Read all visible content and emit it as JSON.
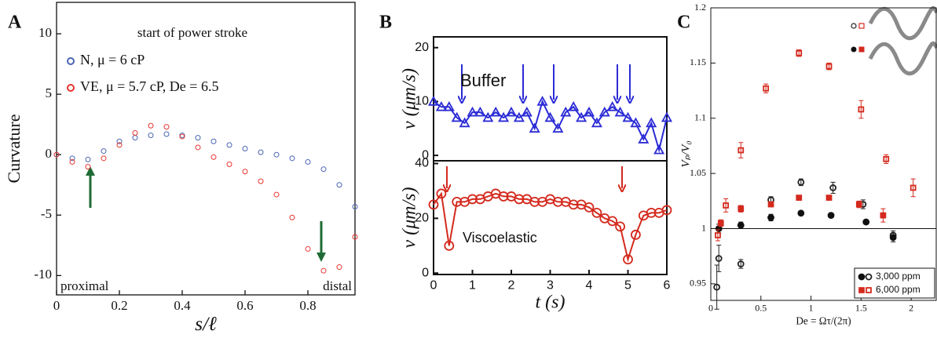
{
  "chart_data": [
    {
      "type": "scatter",
      "panel": "A",
      "x": [
        0,
        0.05,
        0.1,
        0.15,
        0.2,
        0.25,
        0.3,
        0.35,
        0.4,
        0.45,
        0.5,
        0.55,
        0.6,
        0.65,
        0.7,
        0.75,
        0.8,
        0.85,
        0.9,
        0.95
      ],
      "series": [
        {
          "name": "N, μ = 6 cP",
          "color": "#4a64b4",
          "marker": "circle",
          "filled": false,
          "values": [
            0,
            -0.3,
            -0.4,
            0.3,
            1.1,
            1.4,
            1.6,
            1.7,
            1.6,
            1.4,
            1.1,
            0.8,
            0.5,
            0.2,
            0,
            -0.3,
            -0.6,
            -1.2,
            -2.5,
            -4.3
          ]
        },
        {
          "name": "VE, μ = 5.7 cP, De = 6.5",
          "color": "#e8352f",
          "marker": "circle",
          "filled": false,
          "values": [
            0,
            -0.6,
            -1,
            -0.3,
            0.8,
            1.8,
            2.4,
            2.3,
            1.5,
            0.6,
            -0.2,
            -0.8,
            -1.4,
            -2.2,
            -3.3,
            -5.2,
            -7.8,
            -9.6,
            -9.3,
            -6.8
          ]
        }
      ],
      "xlim": [
        0,
        0.95
      ],
      "ylim": [
        -11.6,
        12.6
      ],
      "xticks": [
        0,
        0.2,
        0.4,
        0.6,
        0.8
      ],
      "yticks": [
        -10,
        -5,
        0,
        5,
        10
      ],
      "xlabel": "s/ℓ",
      "ylabel": "Curvature",
      "annotations": [
        "start of power stroke",
        "proximal",
        "distal"
      ]
    },
    {
      "type": "line",
      "panel": "B",
      "x": [
        0,
        0.2,
        0.4,
        0.6,
        0.8,
        1,
        1.2,
        1.4,
        1.6,
        1.8,
        2,
        2.2,
        2.4,
        2.6,
        2.8,
        3,
        3.2,
        3.4,
        3.6,
        3.8,
        4,
        4.2,
        4.4,
        4.6,
        4.8,
        5,
        5.2,
        5.4,
        5.6,
        5.8,
        6
      ],
      "series": [
        {
          "name": "Buffer",
          "color": "#2b2bd6",
          "marker": "triangle",
          "filled": false,
          "values": [
            10,
            9,
            9,
            7,
            6,
            8,
            8,
            7,
            8,
            7,
            8,
            7,
            8,
            5,
            10,
            7,
            5,
            8,
            9,
            7,
            8,
            6,
            8,
            9,
            8,
            7,
            6,
            3,
            6,
            1,
            7
          ]
        }
      ],
      "xlim": [
        0,
        6
      ],
      "ylim": [
        -1,
        22
      ],
      "yticks": [
        0,
        10,
        20
      ],
      "ylabel": "v (μm/s)"
    },
    {
      "type": "line",
      "x": [
        0,
        0.2,
        0.4,
        0.6,
        0.8,
        1,
        1.2,
        1.4,
        1.6,
        1.8,
        2,
        2.2,
        2.4,
        2.6,
        2.8,
        3,
        3.2,
        3.4,
        3.6,
        3.8,
        4,
        4.2,
        4.4,
        4.6,
        4.8,
        5,
        5.2,
        5.4,
        5.6,
        5.8,
        6
      ],
      "series": [
        {
          "name": "Viscoelastic",
          "color": "#d42a1e",
          "marker": "circle",
          "filled": false,
          "values": [
            25,
            29,
            10,
            26,
            26,
            27,
            27,
            28,
            29,
            28,
            28,
            27,
            27,
            26,
            26,
            27,
            26,
            26,
            25,
            25,
            24,
            22,
            20,
            19,
            17,
            5,
            14,
            21,
            22,
            22,
            23
          ]
        }
      ],
      "xlim": [
        0,
        6
      ],
      "ylim": [
        -0.5,
        41
      ],
      "xticks": [
        0,
        1,
        2,
        3,
        4,
        5,
        6
      ],
      "yticks": [
        0,
        20,
        40
      ],
      "xlabel": "t (s)",
      "ylabel": "v (μm/s)"
    },
    {
      "type": "scatter",
      "panel": "C",
      "series": [
        {
          "color": "#222222",
          "marker": "circle",
          "filled": false,
          "x": [
            0.06,
            0.08,
            0.3,
            0.6,
            0.9,
            1.22,
            1.52,
            1.82
          ],
          "values": [
            0.947,
            0.973,
            0.968,
            1.026,
            1.042,
            1.037,
            1.022,
            0.994
          ],
          "errors": [
            0.02,
            0.012,
            0.004,
            0.003,
            0.003,
            0.005,
            0.004,
            0.004
          ]
        },
        {
          "color": "#111111",
          "marker": "circle",
          "filled": true,
          "x": [
            0.08,
            0.3,
            0.6,
            0.9,
            1.2,
            1.55,
            1.82
          ],
          "values": [
            1,
            1.003,
            1.01,
            1.014,
            1.012,
            1.006,
            0.992
          ],
          "errors": [
            0.004,
            0.003,
            0.003,
            0.002,
            0.002,
            0.002,
            0.004
          ]
        },
        {
          "color": "#d42a1e",
          "marker": "square",
          "filled": false,
          "x": [
            0.07,
            0.15,
            0.3,
            0.55,
            0.88,
            1.18,
            1.5,
            1.75,
            2.02
          ],
          "values": [
            0.994,
            1.021,
            1.071,
            1.127,
            1.159,
            1.147,
            1.108,
            1.063,
            1.037
          ],
          "errors": [
            0.005,
            0.006,
            0.007,
            0.004,
            0.003,
            0.003,
            0.008,
            0.004,
            0.008
          ]
        },
        {
          "color": "#d42a1e",
          "marker": "square",
          "filled": true,
          "x": [
            0.1,
            0.3,
            0.6,
            0.88,
            1.18,
            1.48,
            1.72
          ],
          "values": [
            1.005,
            1.018,
            1.022,
            1.028,
            1.028,
            1.022,
            1.012
          ],
          "errors": [
            0.003,
            0.003,
            0.002,
            0.002,
            0.002,
            0.003,
            0.006
          ]
        }
      ],
      "legend": [
        "3,000 ppm",
        "6,000 ppm"
      ],
      "xlim": [
        0,
        2.25
      ],
      "ylim": [
        0.935,
        1.2
      ],
      "xticks": [
        0,
        0.5,
        1,
        1.5,
        2
      ],
      "yticks": [
        0.95,
        1,
        1.05,
        1.1,
        1.15,
        1.2
      ],
      "hline": 1,
      "xlabel": "De = Ωτ/(2π)",
      "ylabel": "Vₚ/V₀"
    }
  ]
}
